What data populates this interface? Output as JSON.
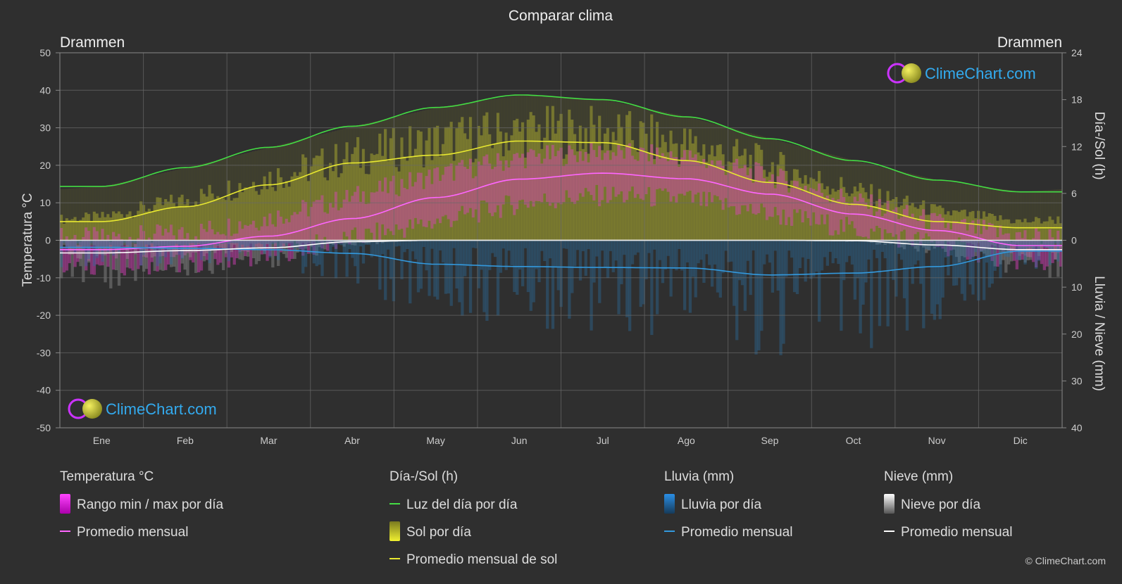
{
  "chart_data": {
    "type": "area",
    "title": "Comparar clima",
    "location_left": "Drammen",
    "location_right": "Drammen",
    "categories": [
      "Ene",
      "Feb",
      "Mar",
      "Abr",
      "May",
      "Jun",
      "Jul",
      "Ago",
      "Sep",
      "Oct",
      "Nov",
      "Dic"
    ],
    "y_left": {
      "label": "Temperatura °C",
      "range": [
        -50,
        50
      ],
      "ticks": [
        "50",
        "40",
        "30",
        "20",
        "10",
        "0",
        "-10",
        "-20",
        "-30",
        "-40",
        "-50"
      ]
    },
    "y_right_top": {
      "label": "Día-/Sol (h)",
      "range": [
        0,
        24
      ],
      "ticks": [
        "24",
        "18",
        "12",
        "6",
        "0"
      ]
    },
    "y_right_bottom": {
      "label": "Lluvia / Nieve (mm)",
      "range": [
        0,
        40
      ],
      "ticks": [
        "0",
        "10",
        "20",
        "30",
        "40"
      ]
    },
    "grid": true,
    "series": [
      {
        "name": "Luz del día por día",
        "unit": "h",
        "color": "#44dd44",
        "values": [
          6.9,
          9.3,
          11.9,
          14.6,
          17.0,
          18.6,
          18.0,
          15.8,
          13.0,
          10.2,
          7.7,
          6.2
        ]
      },
      {
        "name": "Sol por día",
        "unit": "h",
        "color": "#c8c832",
        "values": [
          3.0,
          5.2,
          8.0,
          10.7,
          12.6,
          13.9,
          13.9,
          12.2,
          9.5,
          6.3,
          3.7,
          2.4
        ]
      },
      {
        "name": "Promedio mensual de sol",
        "unit": "h",
        "color": "#e8e830",
        "values": [
          2.4,
          4.3,
          7.1,
          9.9,
          10.9,
          12.7,
          12.5,
          10.2,
          7.4,
          4.6,
          2.4,
          1.6
        ]
      },
      {
        "name": "Promedio mensual",
        "group": "Temperatura °C",
        "unit": "°C",
        "color": "#ff66ff",
        "values": [
          -2.5,
          -1.6,
          1.1,
          5.8,
          11.4,
          16.3,
          17.9,
          16.4,
          12.3,
          7.0,
          2.6,
          -1.4
        ]
      },
      {
        "name": "Temp max",
        "unit": "°C",
        "values": [
          0.5,
          1.8,
          6.0,
          11.5,
          17.5,
          22.0,
          23.5,
          22.0,
          17.0,
          10.5,
          4.5,
          1.0
        ]
      },
      {
        "name": "Temp min",
        "unit": "°C",
        "values": [
          -6.5,
          -6.0,
          -3.5,
          0.5,
          5.0,
          10.0,
          12.0,
          11.0,
          7.0,
          3.0,
          -1.0,
          -5.5
        ]
      },
      {
        "name": "Promedio mensual",
        "group": "Lluvia (mm)",
        "unit": "mm",
        "color": "#3399dd",
        "values": [
          1.5,
          1.7,
          2.0,
          2.8,
          5.1,
          5.6,
          5.8,
          5.9,
          7.4,
          7.0,
          5.6,
          2.3
        ]
      },
      {
        "name": "Promedio mensual",
        "group": "Nieve (mm)",
        "unit": "mm",
        "color": "#ffffff",
        "values": [
          2.7,
          2.2,
          1.6,
          0.3,
          0.0,
          0.0,
          0.0,
          0.0,
          0.0,
          0.1,
          1.0,
          2.0
        ]
      }
    ],
    "legend": {
      "placement": "bottom",
      "groups": [
        {
          "title": "Temperatura °C",
          "items": [
            {
              "label": "Rango min / max por día",
              "kind": "swatch",
              "color": "#ff22ff"
            },
            {
              "label": "Promedio mensual",
              "kind": "line",
              "color": "#ff66ff"
            }
          ]
        },
        {
          "title": "Día-/Sol (h)",
          "items": [
            {
              "label": "Luz del día por día",
              "kind": "line",
              "color": "#44dd44"
            },
            {
              "label": "Sol por día",
              "kind": "swatch",
              "color": "#dede30"
            },
            {
              "label": "Promedio mensual de sol",
              "kind": "line",
              "color": "#e8e830"
            }
          ]
        },
        {
          "title": "Lluvia (mm)",
          "items": [
            {
              "label": "Lluvia por día",
              "kind": "swatch",
              "color": "#2a8ee6"
            },
            {
              "label": "Promedio mensual",
              "kind": "line",
              "color": "#3399dd"
            }
          ]
        },
        {
          "title": "Nieve (mm)",
          "items": [
            {
              "label": "Nieve por día",
              "kind": "swatch",
              "color": "#ffffff"
            },
            {
              "label": "Promedio mensual",
              "kind": "line",
              "color": "#ffffff"
            }
          ]
        }
      ]
    },
    "watermark": "ClimeChart.com",
    "copyright": "© ClimeChart.com"
  }
}
